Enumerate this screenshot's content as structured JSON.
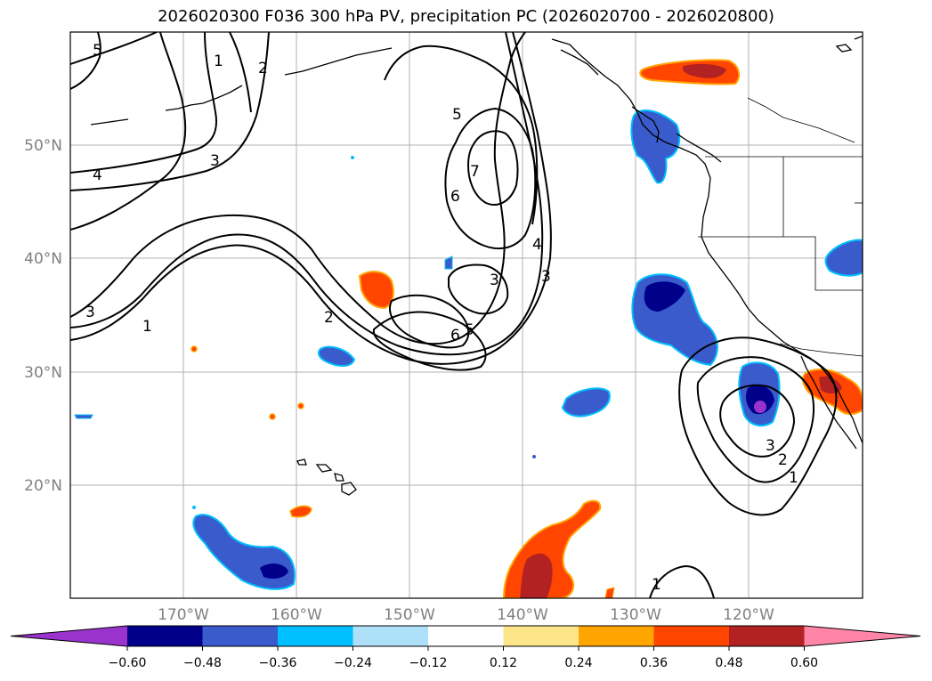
{
  "title": "2026020300 F036 300 hPa PV, precipitation PC (2026020700 - 2026020800)",
  "map": {
    "lat_labels": [
      "50°N",
      "40°N",
      "30°N",
      "20°N"
    ],
    "lon_labels": [
      "170°W",
      "160°W",
      "150°W",
      "140°W",
      "130°W",
      "120°W"
    ],
    "contour_labels": [
      "5",
      "1",
      "2",
      "4",
      "3",
      "5",
      "7",
      "6",
      "3",
      "1",
      "4",
      "3",
      "2",
      "6",
      "5",
      "3",
      "3",
      "2",
      "1",
      "1"
    ]
  },
  "colorbar": {
    "ticks": [
      "−0.60",
      "−0.48",
      "−0.36",
      "−0.24",
      "−0.12",
      "0.12",
      "0.24",
      "0.36",
      "0.48",
      "0.60"
    ],
    "colors": [
      "#9933cc",
      "#00008b",
      "#3a5bcc",
      "#00bfff",
      "#aee0fa",
      "#ffffff",
      "#fde68a",
      "#ffa500",
      "#ff4500",
      "#b22222",
      "#ff85a8"
    ]
  }
}
